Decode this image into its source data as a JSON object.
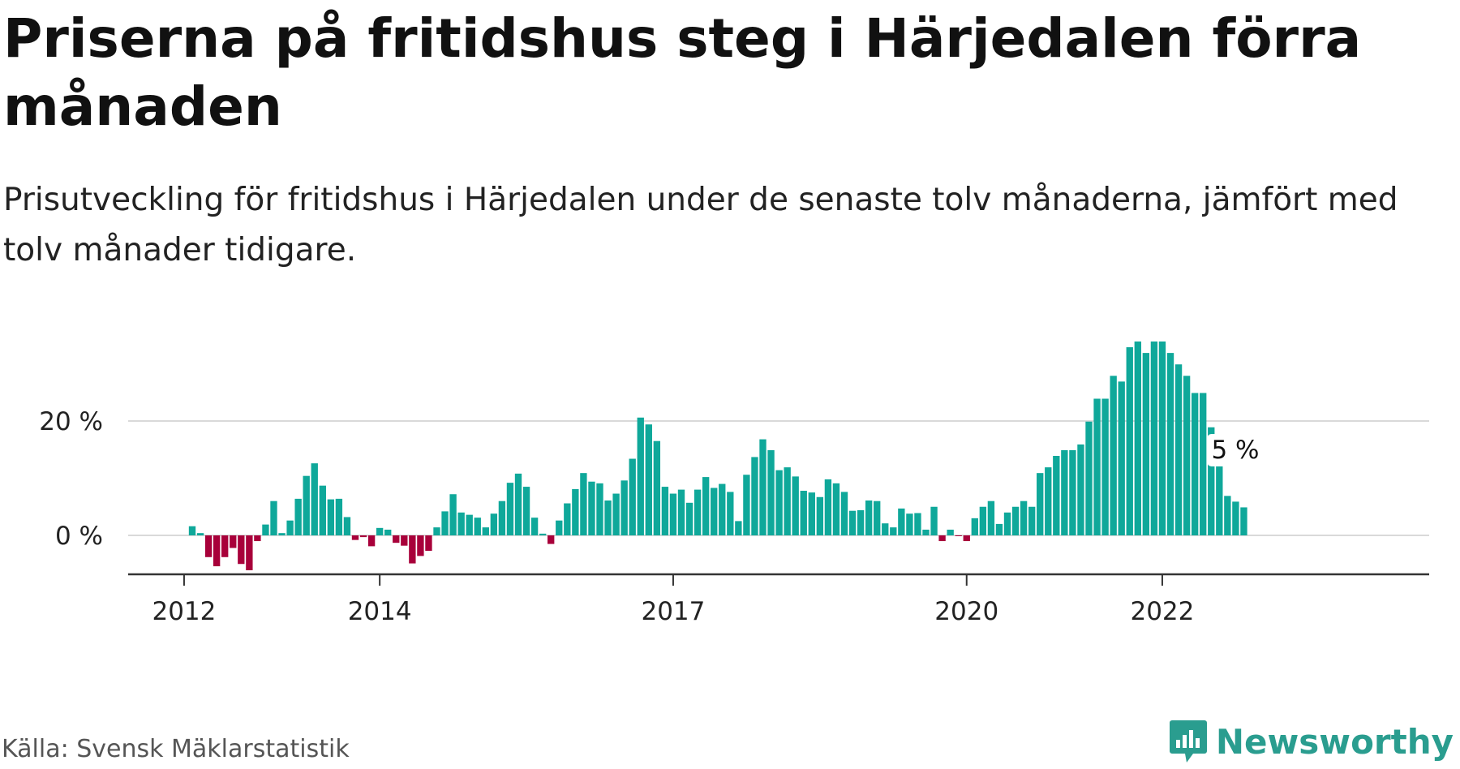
{
  "header": {
    "title": "Priserna på fritidshus steg i Härjedalen förra månaden",
    "subtitle": "Prisutveckling för fritidshus i Härjedalen under de senaste tolv månaderna, jämfört med tolv månader tidigare."
  },
  "footer": {
    "source": "Källa: Svensk Mäklarstatistik",
    "brand": "Newsworthy"
  },
  "colors": {
    "positive": "#0fa89a",
    "negative": "#a8003a",
    "brand": "#2a9d8f",
    "grid": "#d9d9d9",
    "axis": "#333333"
  },
  "chart_data": {
    "type": "bar",
    "x_start": "2012-02",
    "x_end": "2023-02",
    "x_ticks": [
      {
        "month": "2012-01",
        "label": "2012"
      },
      {
        "month": "2014-01",
        "label": "2014"
      },
      {
        "month": "2017-01",
        "label": "2017"
      },
      {
        "month": "2020-01",
        "label": "2020"
      },
      {
        "month": "2022-01",
        "label": "2022"
      }
    ],
    "y_ticks": [
      {
        "value": 0,
        "label": "0 %"
      },
      {
        "value": 20,
        "label": "20 %"
      }
    ],
    "ylim": [
      -7,
      34
    ],
    "grid": true,
    "end_label": "5 %",
    "values": [
      1.6,
      0.4,
      -3.8,
      -5.4,
      -3.8,
      -2.2,
      -5.0,
      -6.1,
      -1.0,
      1.9,
      6.0,
      0.4,
      2.6,
      6.4,
      10.4,
      12.6,
      8.7,
      6.3,
      6.4,
      3.2,
      -0.8,
      -0.3,
      -1.9,
      1.3,
      1.0,
      -1.3,
      -1.8,
      -4.9,
      -3.6,
      -2.7,
      1.4,
      4.2,
      7.2,
      4.0,
      3.6,
      3.1,
      1.4,
      3.8,
      6.0,
      9.2,
      10.8,
      8.5,
      3.1,
      0.3,
      -1.5,
      2.6,
      5.6,
      8.1,
      10.9,
      9.4,
      9.1,
      6.1,
      7.3,
      9.6,
      13.4,
      20.6,
      19.4,
      16.5,
      8.5,
      7.3,
      8.0,
      5.7,
      8.0,
      10.2,
      8.3,
      9.0,
      7.6,
      2.5,
      10.6,
      13.7,
      16.8,
      14.9,
      11.4,
      11.9,
      10.3,
      7.8,
      7.5,
      6.7,
      9.8,
      9.1,
      7.6,
      4.3,
      4.4,
      6.1,
      6.0,
      2.1,
      1.4,
      4.7,
      3.8,
      3.9,
      1.0,
      5.0,
      -1.0,
      1.0,
      -0.1,
      -1.0,
      3.0,
      5.0,
      6.0,
      2.0,
      4.0,
      5.0,
      6.0,
      5.0,
      10.9,
      11.9,
      13.9,
      14.9,
      14.9,
      15.9,
      19.9,
      23.9,
      23.9,
      27.9,
      26.9,
      32.9,
      33.9,
      31.9,
      33.9,
      33.9,
      31.9,
      29.9,
      27.9,
      24.9,
      24.9,
      18.9,
      13.9,
      6.9,
      5.9,
      4.9
    ]
  }
}
